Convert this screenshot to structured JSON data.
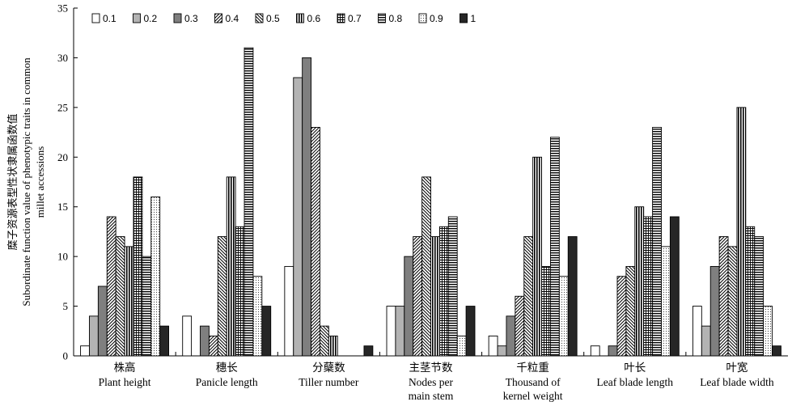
{
  "chart_data": {
    "type": "bar",
    "ylim": [
      0,
      35
    ],
    "yticks": [
      0,
      5,
      10,
      15,
      20,
      25,
      30,
      35
    ],
    "ylabel_lines": [
      "糜子资源表型性状隶属函数值",
      "Subordinate function value of  phenotypic traits in common",
      "millet accessions"
    ],
    "legend_position": "top-left",
    "categories": [
      {
        "cn": "株高",
        "en": [
          "Plant height"
        ]
      },
      {
        "cn": "穗长",
        "en": [
          "Panicle length"
        ]
      },
      {
        "cn": "分蘖数",
        "en": [
          "Tiller number"
        ]
      },
      {
        "cn": "主茎节数",
        "en": [
          "Nodes per",
          "main stem"
        ]
      },
      {
        "cn": "千粒重",
        "en": [
          "Thousand of",
          "kernel weight"
        ]
      },
      {
        "cn": "叶长",
        "en": [
          "Leaf blade length"
        ]
      },
      {
        "cn": "叶宽",
        "en": [
          "Leaf blade width"
        ]
      }
    ],
    "series": [
      {
        "name": "0.1",
        "values": [
          1,
          4,
          9,
          5,
          2,
          1,
          5
        ]
      },
      {
        "name": "0.2",
        "values": [
          4,
          0,
          28,
          5,
          1,
          0,
          3
        ]
      },
      {
        "name": "0.3",
        "values": [
          7,
          3,
          30,
          10,
          4,
          1,
          9
        ]
      },
      {
        "name": "0.4",
        "values": [
          14,
          2,
          23,
          12,
          6,
          8,
          12
        ]
      },
      {
        "name": "0.5",
        "values": [
          12,
          12,
          3,
          18,
          12,
          9,
          11
        ]
      },
      {
        "name": "0.6",
        "values": [
          11,
          18,
          2,
          12,
          20,
          15,
          25
        ]
      },
      {
        "name": "0.7",
        "values": [
          18,
          13,
          0,
          13,
          9,
          14,
          13
        ]
      },
      {
        "name": "0.8",
        "values": [
          10,
          31,
          0,
          14,
          22,
          23,
          12
        ]
      },
      {
        "name": "0.9",
        "values": [
          16,
          8,
          0,
          2,
          8,
          11,
          5
        ]
      },
      {
        "name": "1",
        "values": [
          3,
          5,
          1,
          5,
          12,
          14,
          1
        ]
      }
    ]
  }
}
